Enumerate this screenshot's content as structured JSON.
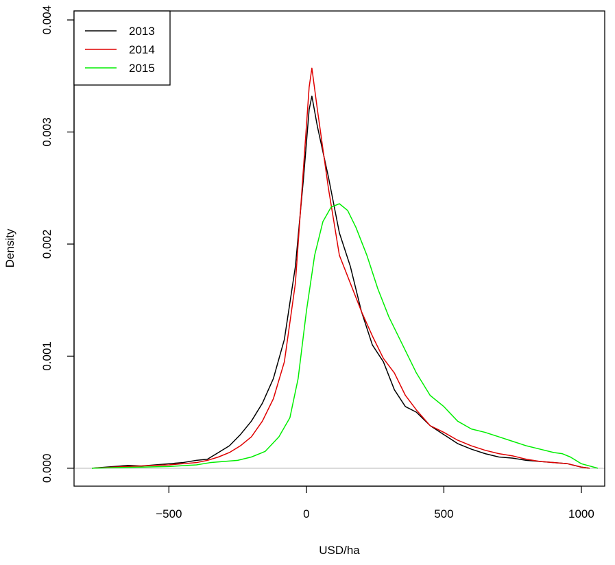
{
  "chart_data": {
    "type": "line",
    "title": "",
    "xlabel": "USD/ha",
    "ylabel": "Density",
    "xlim": [
      -845,
      1085
    ],
    "ylim": [
      -0.00016,
      0.00408
    ],
    "xticks": [
      -500,
      0,
      500,
      1000
    ],
    "xtick_labels": [
      "−500",
      "0",
      "500",
      "1000"
    ],
    "yticks": [
      0.0,
      0.001,
      0.002,
      0.003,
      0.004
    ],
    "ytick_labels": [
      "0.000",
      "0.001",
      "0.002",
      "0.003",
      "0.004"
    ],
    "grid": false,
    "zero_line": true,
    "legend_position": "top-left",
    "series": [
      {
        "name": "2013",
        "color": "#000000",
        "x": [
          -780,
          -700,
          -650,
          -600,
          -550,
          -500,
          -450,
          -400,
          -360,
          -320,
          -280,
          -240,
          -200,
          -160,
          -120,
          -80,
          -40,
          -10,
          10,
          20,
          40,
          80,
          120,
          160,
          200,
          240,
          280,
          320,
          360,
          400,
          450,
          500,
          550,
          600,
          650,
          700,
          750,
          800,
          850,
          900,
          950,
          1000,
          1030
        ],
        "y": [
          0.0,
          1.5e-05,
          2.5e-05,
          2e-05,
          3e-05,
          4e-05,
          5e-05,
          7e-05,
          8e-05,
          0.00014,
          0.0002,
          0.0003,
          0.00042,
          0.00058,
          0.0008,
          0.00115,
          0.0018,
          0.0026,
          0.0032,
          0.00332,
          0.00305,
          0.0026,
          0.0021,
          0.0018,
          0.0014,
          0.0011,
          0.00095,
          0.0007,
          0.00055,
          0.0005,
          0.00038,
          0.0003,
          0.00022,
          0.00017,
          0.00013,
          0.0001,
          9e-05,
          7e-05,
          6e-05,
          5e-05,
          4e-05,
          1e-05,
          0.0
        ]
      },
      {
        "name": "2014",
        "color": "#df0000",
        "x": [
          -780,
          -700,
          -650,
          -600,
          -550,
          -500,
          -450,
          -400,
          -360,
          -320,
          -280,
          -240,
          -200,
          -160,
          -120,
          -80,
          -40,
          -10,
          10,
          20,
          40,
          80,
          120,
          160,
          200,
          240,
          280,
          320,
          360,
          400,
          450,
          500,
          550,
          600,
          650,
          700,
          750,
          800,
          850,
          900,
          950,
          1000,
          1030
        ],
        "y": [
          0.0,
          1e-05,
          1.5e-05,
          2e-05,
          2.5e-05,
          3e-05,
          4e-05,
          5e-05,
          7e-05,
          0.0001,
          0.00014,
          0.0002,
          0.00028,
          0.00042,
          0.00062,
          0.00095,
          0.00165,
          0.0027,
          0.0034,
          0.00357,
          0.0032,
          0.0025,
          0.0019,
          0.00165,
          0.0014,
          0.00118,
          0.00098,
          0.00085,
          0.00065,
          0.00052,
          0.00038,
          0.00032,
          0.00025,
          0.0002,
          0.00016,
          0.00013,
          0.00011,
          8e-05,
          6e-05,
          5e-05,
          4e-05,
          1e-05,
          0.0
        ]
      },
      {
        "name": "2015",
        "color": "#00ee00",
        "x": [
          -780,
          -700,
          -600,
          -500,
          -400,
          -350,
          -300,
          -250,
          -200,
          -150,
          -100,
          -60,
          -30,
          0,
          30,
          60,
          90,
          120,
          150,
          180,
          220,
          260,
          300,
          350,
          400,
          450,
          500,
          550,
          600,
          650,
          700,
          750,
          800,
          850,
          900,
          930,
          960,
          1000,
          1060
        ],
        "y": [
          0.0,
          5e-06,
          1e-05,
          1.5e-05,
          3e-05,
          5e-05,
          6e-05,
          7e-05,
          0.0001,
          0.00015,
          0.00028,
          0.00045,
          0.0008,
          0.0014,
          0.0019,
          0.0022,
          0.00233,
          0.00236,
          0.0023,
          0.00215,
          0.0019,
          0.0016,
          0.00135,
          0.0011,
          0.00085,
          0.00065,
          0.00055,
          0.00042,
          0.00035,
          0.00032,
          0.00028,
          0.00024,
          0.0002,
          0.00017,
          0.00014,
          0.00013,
          0.0001,
          4e-05,
          0.0
        ]
      }
    ]
  }
}
